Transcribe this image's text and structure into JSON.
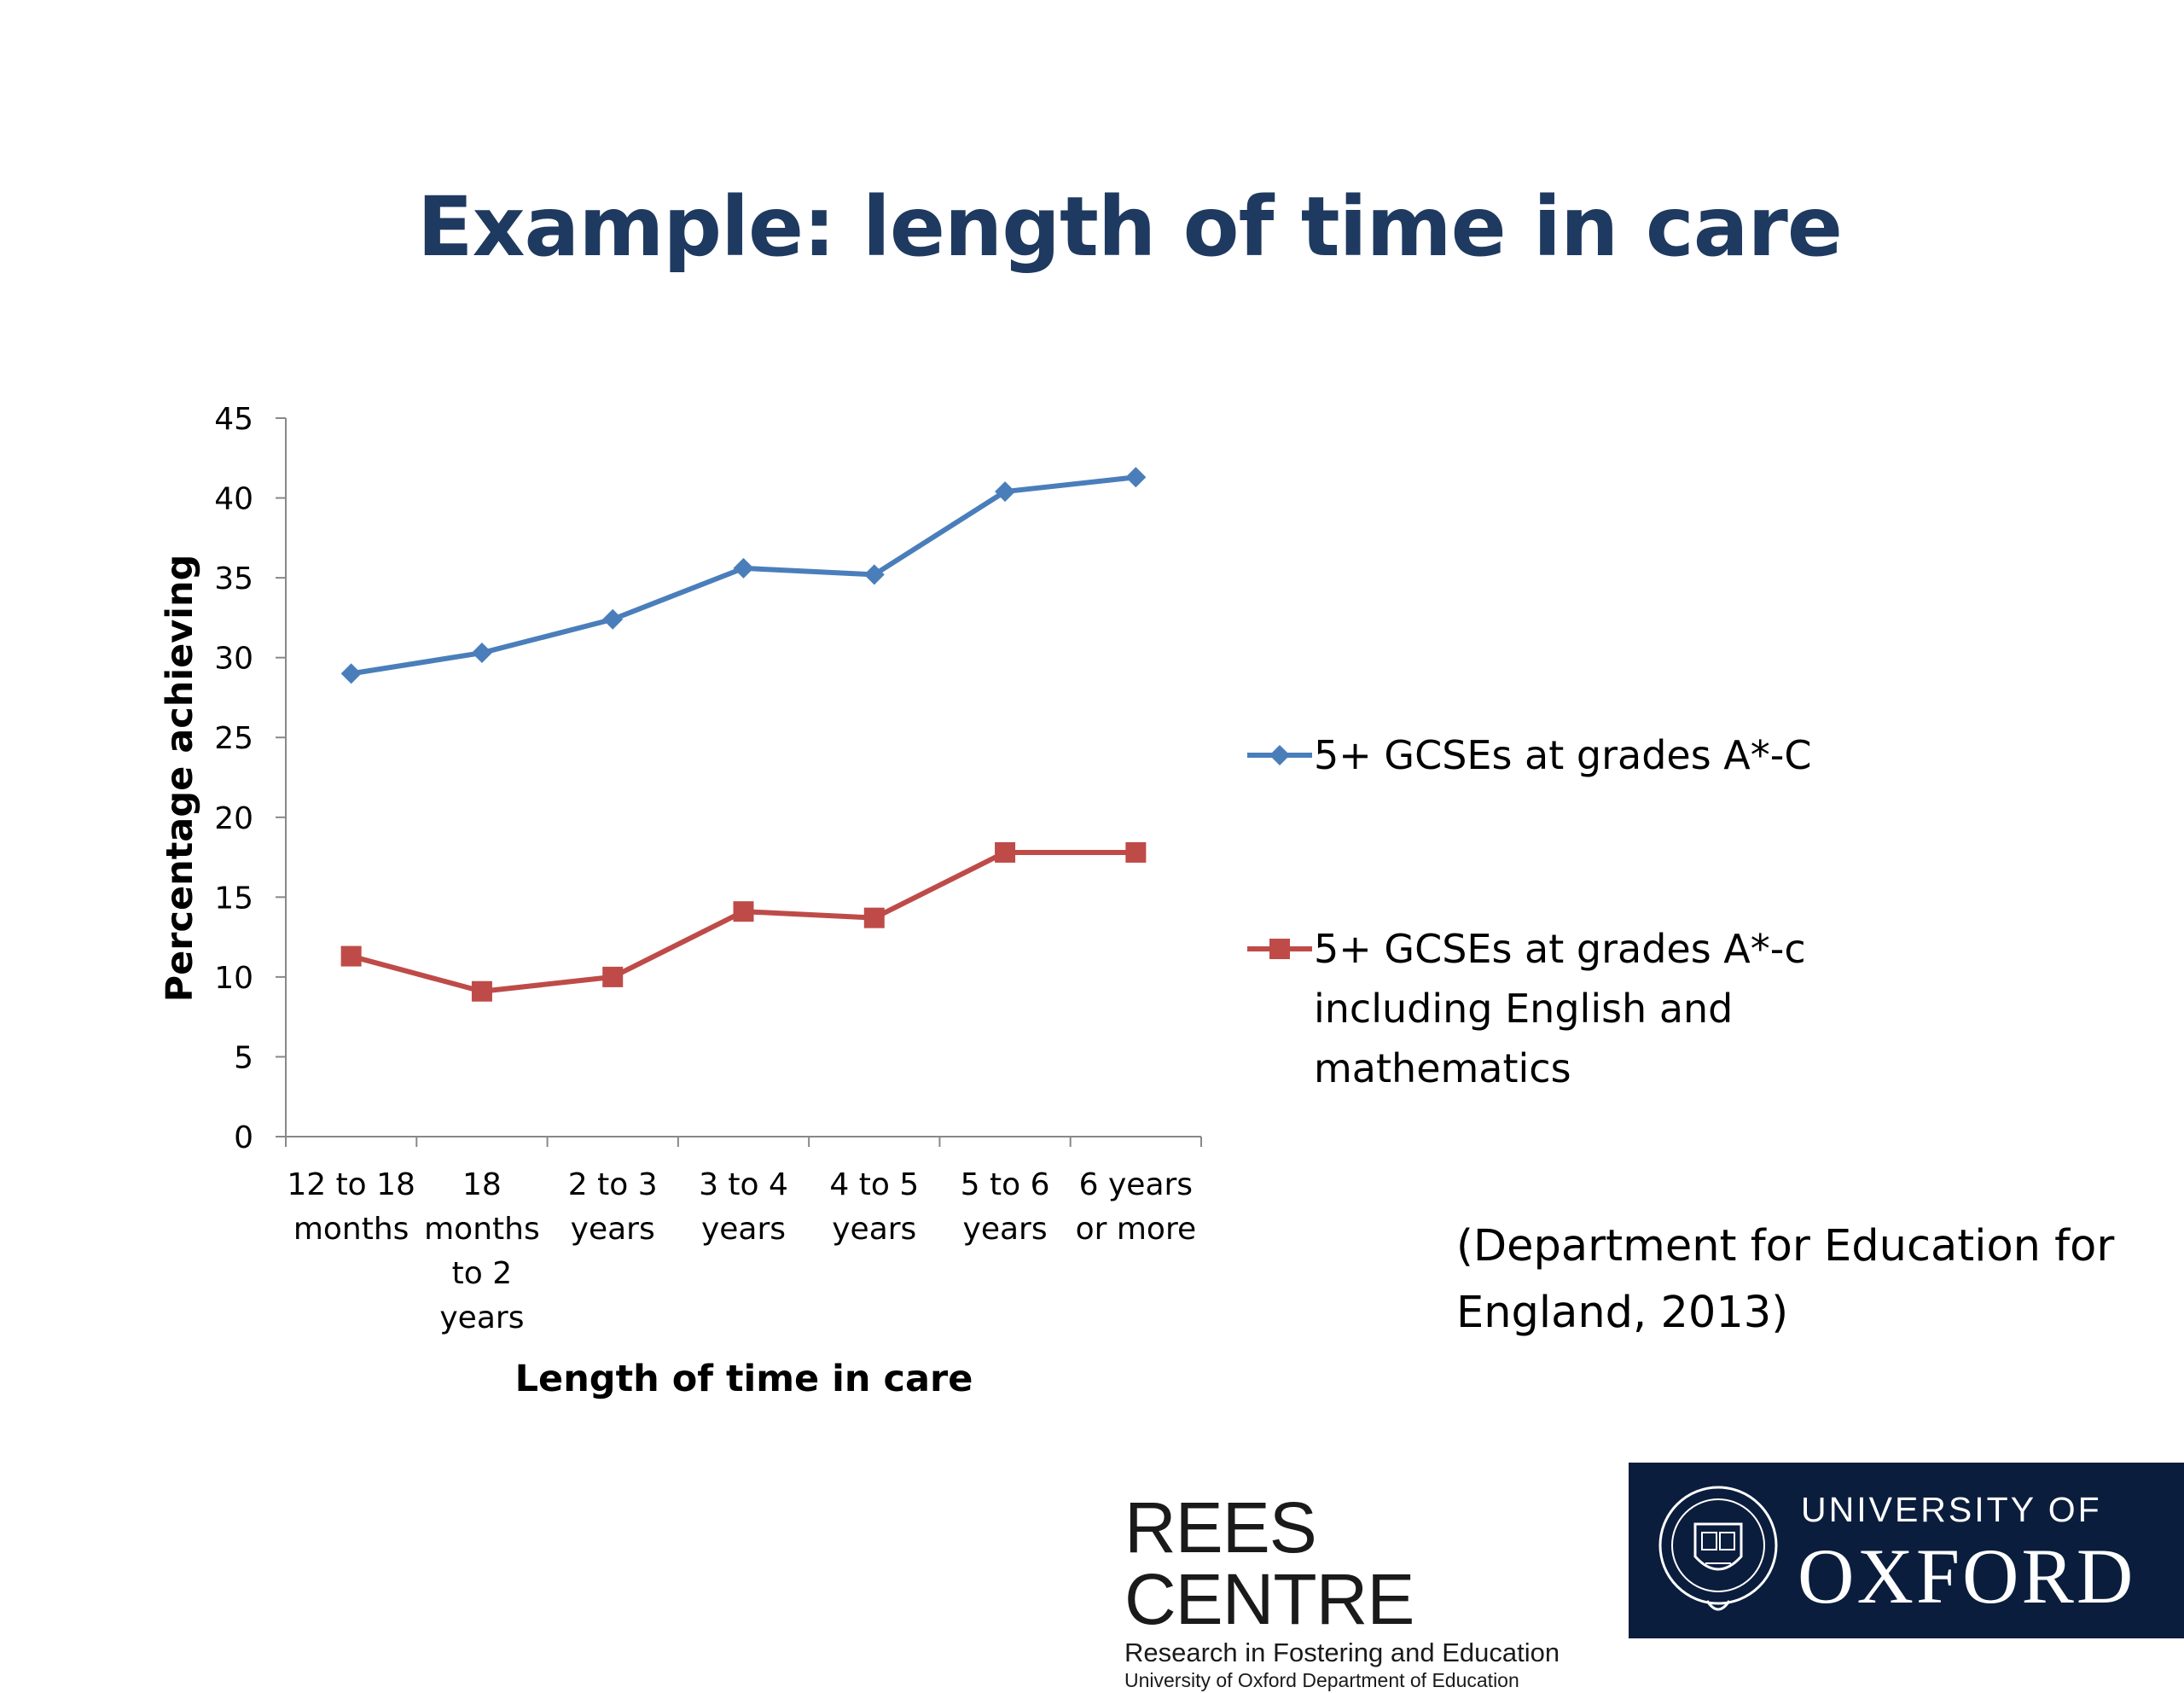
{
  "slide": {
    "title": "Example: length of time in care",
    "source_line1": "(Department for Education for",
    "source_line2": "England, 2013)"
  },
  "chart_data": {
    "type": "line",
    "xlabel": "Length of time in care",
    "ylabel": "Percentage achieving",
    "ylim": [
      0,
      45
    ],
    "yticks": [
      "0",
      "5",
      "10",
      "15",
      "20",
      "25",
      "30",
      "35",
      "40",
      "45"
    ],
    "grid": false,
    "legend_position": "right",
    "categories": [
      [
        "12 to 18",
        "months"
      ],
      [
        "18",
        "months",
        "to 2",
        "years"
      ],
      [
        "2 to 3",
        "years"
      ],
      [
        "3 to 4",
        "years"
      ],
      [
        "4 to 5",
        "years"
      ],
      [
        "5 to 6",
        "years"
      ],
      [
        "6 years",
        "or more"
      ]
    ],
    "series": [
      {
        "name": "5+ GCSEs at grades A*-C",
        "legend_lines": [
          "5+ GCSEs at grades A*-C"
        ],
        "color": "#4A7EBB",
        "marker": "diamond",
        "values": [
          29.0,
          30.3,
          32.4,
          35.6,
          35.2,
          40.4,
          41.3
        ]
      },
      {
        "name": "5+ GCSEs at grades A*-c including English and mathematics",
        "legend_lines": [
          "5+ GCSEs at grades A*-c",
          "including English and",
          "mathematics"
        ],
        "color": "#BE4B48",
        "marker": "square",
        "values": [
          11.3,
          9.1,
          10.0,
          14.1,
          13.7,
          17.8,
          17.8
        ]
      }
    ]
  },
  "logos": {
    "rees_name": "REES CENTRE",
    "rees_sub1": "Research in Fostering and Education",
    "rees_sub2": "University of Oxford Department of Education",
    "oxford_line1": "UNIVERSITY OF",
    "oxford_line2": "OXFORD",
    "oxford_bg": "#0B1D3D"
  }
}
